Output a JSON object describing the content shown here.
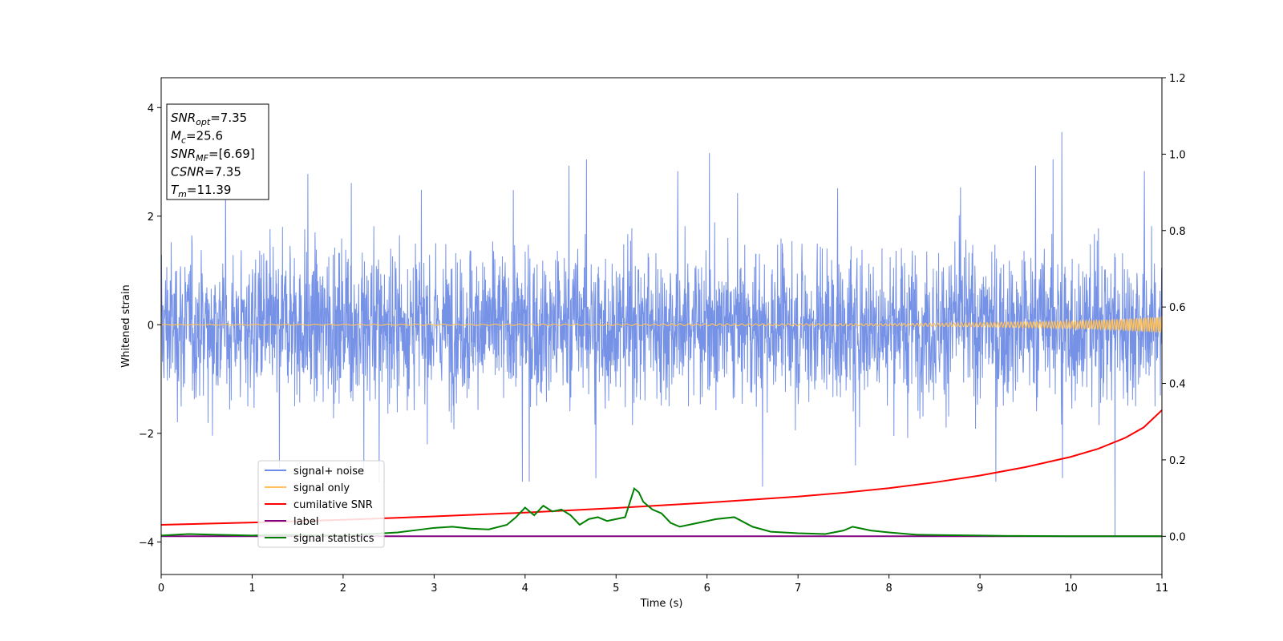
{
  "chart_data": {
    "type": "line",
    "xlabel": "Time (s)",
    "ylabel": "Whitened strain",
    "xlim": [
      0,
      11
    ],
    "ylim_left": [
      -4.6,
      4.55
    ],
    "ylim_right": [
      -0.1,
      1.2
    ],
    "x_ticks": [
      "0",
      "1",
      "2",
      "3",
      "4",
      "5",
      "6",
      "7",
      "8",
      "9",
      "10",
      "11"
    ],
    "y_left_ticks": [
      "4",
      "2",
      "0",
      "−2",
      "−4"
    ],
    "y_right_ticks": [
      "1.2",
      "1.0",
      "0.8",
      "0.6",
      "0.4",
      "0.2",
      "0.0"
    ],
    "colors": {
      "noise": "#6f8ce6",
      "signal": "#ffc15a",
      "cumulative": "#ff0000",
      "label": "#800080",
      "statistics": "#008000"
    },
    "noise_summary": {
      "typical_band": [
        -1.5,
        1.8
      ],
      "max_peak": 3.55,
      "min_peak": -3.9
    },
    "signal_only": {
      "x": [
        0,
        8,
        9,
        10,
        10.5,
        11
      ],
      "amplitude": [
        0.005,
        0.02,
        0.04,
        0.07,
        0.1,
        0.15
      ]
    },
    "series": [
      {
        "name": "cumilative SNR",
        "axis": "right",
        "x": [
          0,
          1,
          2,
          3,
          4,
          5,
          6,
          7,
          7.5,
          8,
          8.5,
          9,
          9.5,
          10,
          10.3,
          10.6,
          10.8,
          11
        ],
        "values": [
          0.03,
          0.036,
          0.043,
          0.052,
          0.062,
          0.074,
          0.088,
          0.104,
          0.114,
          0.126,
          0.141,
          0.159,
          0.181,
          0.208,
          0.229,
          0.258,
          0.285,
          0.33
        ]
      },
      {
        "name": "label",
        "axis": "right",
        "x": [
          0,
          11
        ],
        "values": [
          0,
          0
        ]
      },
      {
        "name": "signal statistics",
        "axis": "right",
        "x": [
          0,
          0.3,
          0.6,
          1,
          1.3,
          1.6,
          2,
          2.3,
          2.6,
          2.8,
          3,
          3.2,
          3.4,
          3.6,
          3.8,
          3.9,
          4.0,
          4.1,
          4.2,
          4.3,
          4.4,
          4.5,
          4.6,
          4.7,
          4.8,
          4.9,
          5.0,
          5.1,
          5.2,
          5.25,
          5.3,
          5.4,
          5.5,
          5.6,
          5.7,
          5.9,
          6.1,
          6.3,
          6.5,
          6.7,
          7.0,
          7.3,
          7.5,
          7.6,
          7.7,
          7.8,
          8.0,
          8.3,
          8.6,
          9.0,
          9.3,
          10,
          11
        ],
        "values": [
          0.002,
          0.006,
          0.004,
          0.002,
          0.004,
          0.003,
          0.002,
          0.006,
          0.01,
          0.016,
          0.022,
          0.025,
          0.02,
          0.018,
          0.03,
          0.05,
          0.075,
          0.055,
          0.08,
          0.065,
          0.07,
          0.055,
          0.03,
          0.045,
          0.05,
          0.04,
          0.045,
          0.05,
          0.125,
          0.115,
          0.09,
          0.07,
          0.06,
          0.035,
          0.025,
          0.035,
          0.045,
          0.05,
          0.025,
          0.012,
          0.008,
          0.006,
          0.015,
          0.025,
          0.02,
          0.015,
          0.01,
          0.004,
          0.003,
          0.002,
          0.001,
          0.0,
          0.0
        ]
      }
    ],
    "legend": {
      "placement": "lower-left",
      "entries": [
        {
          "label": "signal+ noise",
          "color": "#6f8ce6"
        },
        {
          "label": "signal only",
          "color": "#ffc15a"
        },
        {
          "label": "cumilative SNR",
          "color": "#ff0000"
        },
        {
          "label": "label",
          "color": "#800080"
        },
        {
          "label": "signal statistics",
          "color": "#008000"
        }
      ]
    },
    "stats_box": {
      "placement": "top-left",
      "lines": [
        {
          "symbol": "SNR",
          "sub": "opt",
          "value": "=7.35"
        },
        {
          "symbol": "M",
          "sub": "c",
          "value": "=25.6"
        },
        {
          "symbol": "SNR",
          "sub": "MF",
          "value": "=[6.69]"
        },
        {
          "symbol": "CSNR",
          "sub": "",
          "value": "=7.35"
        },
        {
          "symbol": "T",
          "sub": "m",
          "value": "=11.39"
        }
      ]
    }
  }
}
